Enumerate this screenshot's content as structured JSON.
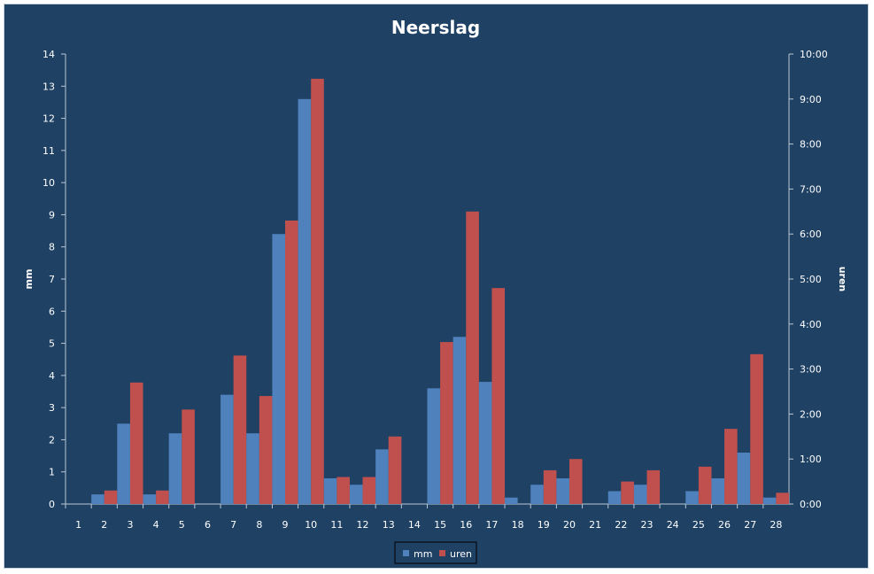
{
  "chart_data": {
    "type": "bar",
    "title": "Neerslag",
    "ylabel": "mm",
    "y2label": "uren",
    "categories": [
      "1",
      "2",
      "3",
      "4",
      "5",
      "6",
      "7",
      "8",
      "9",
      "10",
      "11",
      "12",
      "13",
      "14",
      "15",
      "16",
      "17",
      "18",
      "19",
      "20",
      "21",
      "22",
      "23",
      "24",
      "25",
      "26",
      "27",
      "28"
    ],
    "series": [
      {
        "name": "mm",
        "axis": "left",
        "color": "#4f81bd",
        "values": [
          0,
          0.3,
          2.5,
          0.3,
          2.2,
          0,
          3.4,
          2.2,
          8.4,
          12.6,
          0.8,
          0.6,
          1.7,
          0,
          3.6,
          5.2,
          3.8,
          0.2,
          0.6,
          0.8,
          0,
          0.4,
          0.6,
          0,
          0.4,
          0.8,
          1.6,
          0.2
        ]
      },
      {
        "name": "uren",
        "axis": "right",
        "unit": "hours",
        "color": "#c0504d",
        "values": [
          0,
          0.3,
          2.7,
          0.3,
          2.1,
          0,
          3.3,
          2.4,
          6.3,
          9.45,
          0.6,
          0.6,
          1.5,
          0,
          3.6,
          6.5,
          4.8,
          0,
          0.75,
          1.0,
          0,
          0.5,
          0.75,
          0,
          0.83,
          1.67,
          3.33,
          0.25
        ]
      }
    ],
    "ylim": [
      0,
      14
    ],
    "yticks": [
      "0",
      "1",
      "2",
      "3",
      "4",
      "5",
      "6",
      "7",
      "8",
      "9",
      "10",
      "11",
      "12",
      "13",
      "14"
    ],
    "y2lim": [
      0,
      10
    ],
    "y2ticks": [
      "0:00",
      "1:00",
      "2:00",
      "3:00",
      "4:00",
      "5:00",
      "6:00",
      "7:00",
      "8:00",
      "9:00",
      "10:00"
    ],
    "legend_position": "bottom",
    "grid": false,
    "colors": {
      "background": "#1f4164",
      "text": "#ffffff",
      "axis": "#b9c6d3"
    }
  }
}
